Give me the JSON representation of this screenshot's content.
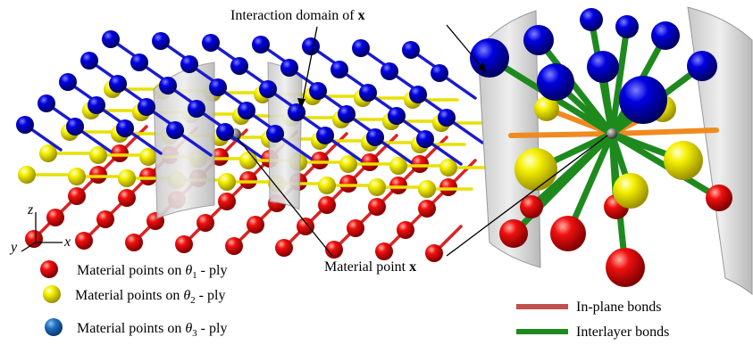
{
  "annotations": {
    "interaction_domain": {
      "text": "Interaction domain of",
      "symbol": "x"
    },
    "material_point": {
      "text": "Material point",
      "symbol": "x"
    }
  },
  "axes": {
    "z": "z",
    "y": "y",
    "x": "x"
  },
  "ply_legend": [
    {
      "text": "Material points on",
      "symbol": "θ",
      "subscript": "1",
      "suffix": "- ply"
    },
    {
      "text": "Material points on",
      "symbol": "θ",
      "subscript": "2",
      "suffix": "- ply"
    },
    {
      "text": "Material points on",
      "symbol": "θ",
      "subscript": "3",
      "suffix": "- ply"
    }
  ],
  "bond_legend": [
    {
      "label": "In-plane bonds"
    },
    {
      "label": "Interlayer bonds"
    }
  ]
}
